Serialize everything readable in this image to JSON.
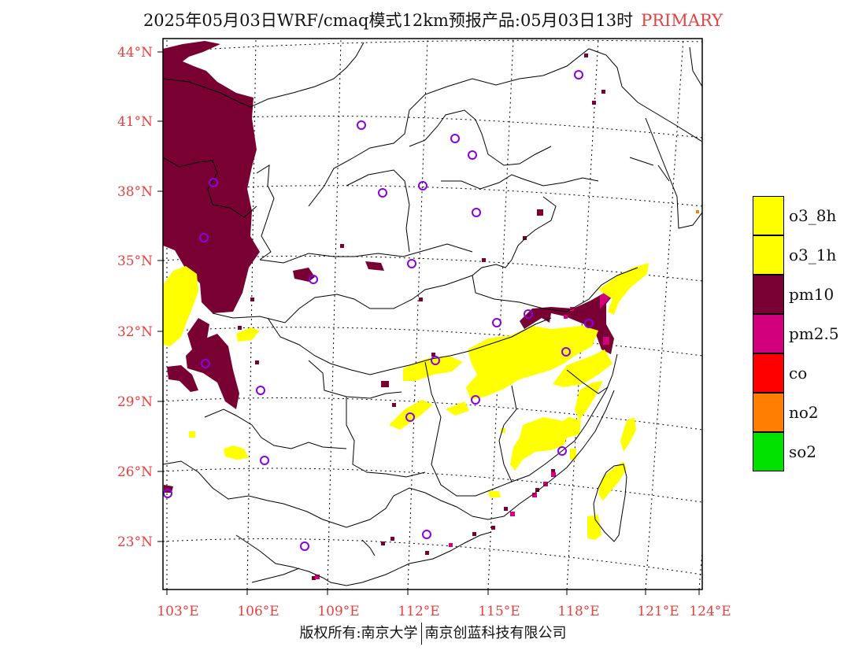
{
  "title": {
    "main": "2025年05月03日WRF/cmaq模式12km预报产品:05月03日13时",
    "tag": "PRIMARY"
  },
  "axes": {
    "lat_labels": [
      "44°N",
      "41°N",
      "38°N",
      "35°N",
      "32°N",
      "29°N",
      "26°N",
      "23°N"
    ],
    "lon_labels": [
      "103°E",
      "106°E",
      "109°E",
      "112°E",
      "115°E",
      "118°E",
      "121°E",
      "124°E"
    ],
    "label_color": "#e8413f"
  },
  "legend": [
    {
      "label": "o3_8h",
      "color": "#ffff00"
    },
    {
      "label": "o3_1h",
      "color": "#ffff00"
    },
    {
      "label": "pm10",
      "color": "#780032"
    },
    {
      "label": "pm2.5",
      "color": "#d2007d"
    },
    {
      "label": "co",
      "color": "#ff0000"
    },
    {
      "label": "no2",
      "color": "#ff7d00"
    },
    {
      "label": "so2",
      "color": "#00e100"
    }
  ],
  "footer": {
    "left": "版权所有:南京大学",
    "right": "南京创蓝科技有限公司"
  },
  "colors": {
    "o3": "#ffff00",
    "pm10": "#780032",
    "pm25": "#d2007d",
    "station_marker": "#8a00e6",
    "border": "#000000"
  }
}
